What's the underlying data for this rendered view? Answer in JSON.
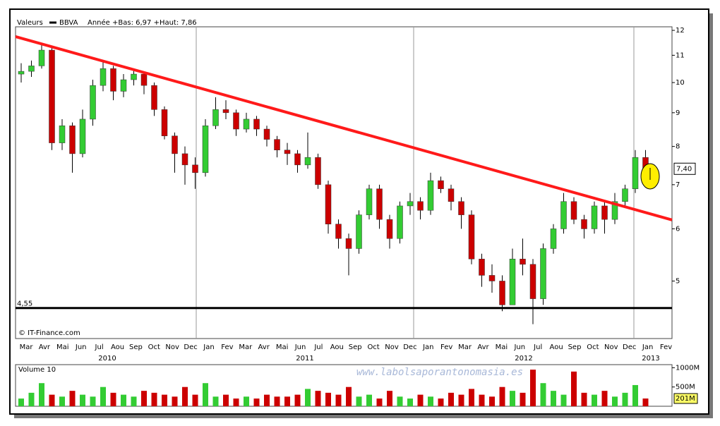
{
  "chart_data": {
    "type": "candlestick",
    "header": {
      "label": "Valeurs",
      "symbol": "BBVA",
      "range": "Année +Bas: 6,97 +Haut: 7,86"
    },
    "copyright": "© IT-Finance.com",
    "watermark": "www.labolsaporantonomasia.es",
    "ylog": true,
    "ylim": [
      4.09,
      12.15
    ],
    "yticks": [
      5,
      6,
      7,
      8,
      9,
      10,
      11,
      12
    ],
    "up_color": "#33cc33",
    "down_color": "#cc0000",
    "candles": [
      [
        10.3,
        10.7,
        10.0,
        10.4
      ],
      [
        10.4,
        10.8,
        10.2,
        10.6
      ],
      [
        10.6,
        11.4,
        10.5,
        11.2
      ],
      [
        11.2,
        11.3,
        7.9,
        8.1
      ],
      [
        8.1,
        8.8,
        7.9,
        8.6
      ],
      [
        8.6,
        8.7,
        7.3,
        7.8
      ],
      [
        7.8,
        9.1,
        7.7,
        8.8
      ],
      [
        8.8,
        10.1,
        8.6,
        9.9
      ],
      [
        9.9,
        10.8,
        9.7,
        10.5
      ],
      [
        10.5,
        10.6,
        9.4,
        9.7
      ],
      [
        9.7,
        10.3,
        9.5,
        10.1
      ],
      [
        10.1,
        10.5,
        9.9,
        10.3
      ],
      [
        10.3,
        10.4,
        9.6,
        9.9
      ],
      [
        9.9,
        10.0,
        8.9,
        9.1
      ],
      [
        9.1,
        9.2,
        8.2,
        8.3
      ],
      [
        8.3,
        8.4,
        7.3,
        7.8
      ],
      [
        7.8,
        8.0,
        7.0,
        7.5
      ],
      [
        7.5,
        7.7,
        6.9,
        7.3
      ],
      [
        7.3,
        8.8,
        7.2,
        8.6
      ],
      [
        8.6,
        9.5,
        8.5,
        9.1
      ],
      [
        9.1,
        9.4,
        8.8,
        9.0
      ],
      [
        9.0,
        9.1,
        8.3,
        8.5
      ],
      [
        8.5,
        9.0,
        8.4,
        8.8
      ],
      [
        8.8,
        8.9,
        8.3,
        8.5
      ],
      [
        8.5,
        8.6,
        8.0,
        8.2
      ],
      [
        8.2,
        8.3,
        7.7,
        7.9
      ],
      [
        7.9,
        8.1,
        7.5,
        7.8
      ],
      [
        7.8,
        7.9,
        7.3,
        7.5
      ],
      [
        7.5,
        8.4,
        7.4,
        7.7
      ],
      [
        7.7,
        7.8,
        6.9,
        7.0
      ],
      [
        7.0,
        7.1,
        5.9,
        6.1
      ],
      [
        6.1,
        6.2,
        5.6,
        5.8
      ],
      [
        5.8,
        5.9,
        5.1,
        5.6
      ],
      [
        5.6,
        6.4,
        5.5,
        6.3
      ],
      [
        6.3,
        7.0,
        6.2,
        6.9
      ],
      [
        6.9,
        7.0,
        6.0,
        6.2
      ],
      [
        6.2,
        6.3,
        5.6,
        5.8
      ],
      [
        5.8,
        6.6,
        5.7,
        6.5
      ],
      [
        6.5,
        6.8,
        6.3,
        6.6
      ],
      [
        6.6,
        6.7,
        6.2,
        6.4
      ],
      [
        6.4,
        7.3,
        6.3,
        7.1
      ],
      [
        7.1,
        7.2,
        6.8,
        6.9
      ],
      [
        6.9,
        7.0,
        6.4,
        6.6
      ],
      [
        6.6,
        6.7,
        6.0,
        6.3
      ],
      [
        6.3,
        6.4,
        5.3,
        5.4
      ],
      [
        5.4,
        5.5,
        4.9,
        5.1
      ],
      [
        5.1,
        5.3,
        4.8,
        5.0
      ],
      [
        5.0,
        5.1,
        4.5,
        4.6
      ],
      [
        4.6,
        5.6,
        4.6,
        5.4
      ],
      [
        5.4,
        5.8,
        5.1,
        5.3
      ],
      [
        5.3,
        5.4,
        4.3,
        4.7
      ],
      [
        4.7,
        5.7,
        4.6,
        5.6
      ],
      [
        5.6,
        6.1,
        5.5,
        6.0
      ],
      [
        6.0,
        6.8,
        5.9,
        6.6
      ],
      [
        6.6,
        6.7,
        6.1,
        6.2
      ],
      [
        6.2,
        6.3,
        5.8,
        6.0
      ],
      [
        6.0,
        6.6,
        5.9,
        6.5
      ],
      [
        6.5,
        6.6,
        5.9,
        6.2
      ],
      [
        6.2,
        6.8,
        6.1,
        6.6
      ],
      [
        6.6,
        7.0,
        6.5,
        6.9
      ],
      [
        6.9,
        7.9,
        6.8,
        7.7
      ],
      [
        7.7,
        7.9,
        7.3,
        7.4
      ]
    ],
    "trendline": {
      "values": [
        11.74,
        6.19
      ],
      "color": "#ff1a1a"
    },
    "support": {
      "value": 4.55,
      "label": "4,55"
    },
    "last_price": {
      "value": 7.4,
      "label": "7,40"
    },
    "months": [
      "Mar",
      "Avr",
      "Mai",
      "Jun",
      "Jul",
      "Aou",
      "Sep",
      "Oct",
      "Nov",
      "Dec",
      "Jan",
      "Fev",
      "Mar",
      "Avr",
      "Mai",
      "Jun",
      "Jul",
      "Aou",
      "Sep",
      "Oct",
      "Nov",
      "Dec",
      "Jan",
      "Fev",
      "Mar",
      "Avr",
      "Mai",
      "Jun",
      "Jul",
      "Aou",
      "Sep",
      "Oct",
      "Nov",
      "Dec",
      "Jan",
      "Fev"
    ],
    "years": [
      "2010",
      "2011",
      "2012",
      "2013"
    ],
    "volume": {
      "title": "Volume 10",
      "ylim": [
        0,
        1080
      ],
      "yticks": [
        {
          "value": 1000,
          "label": "1000M"
        },
        {
          "value": 500,
          "label": "500M"
        }
      ],
      "values": [
        200,
        350,
        600,
        300,
        250,
        400,
        300,
        250,
        500,
        350,
        300,
        250,
        400,
        350,
        300,
        250,
        500,
        300,
        600,
        250,
        300,
        200,
        250,
        200,
        300,
        250,
        250,
        300,
        450,
        400,
        350,
        300,
        500,
        250,
        300,
        200,
        400,
        250,
        200,
        300,
        250,
        200,
        350,
        300,
        450,
        300,
        250,
        500,
        400,
        350,
        950,
        600,
        400,
        300,
        900,
        350,
        300,
        400,
        250,
        350,
        550,
        201
      ],
      "last": {
        "value": 201,
        "label": "201M"
      }
    }
  }
}
